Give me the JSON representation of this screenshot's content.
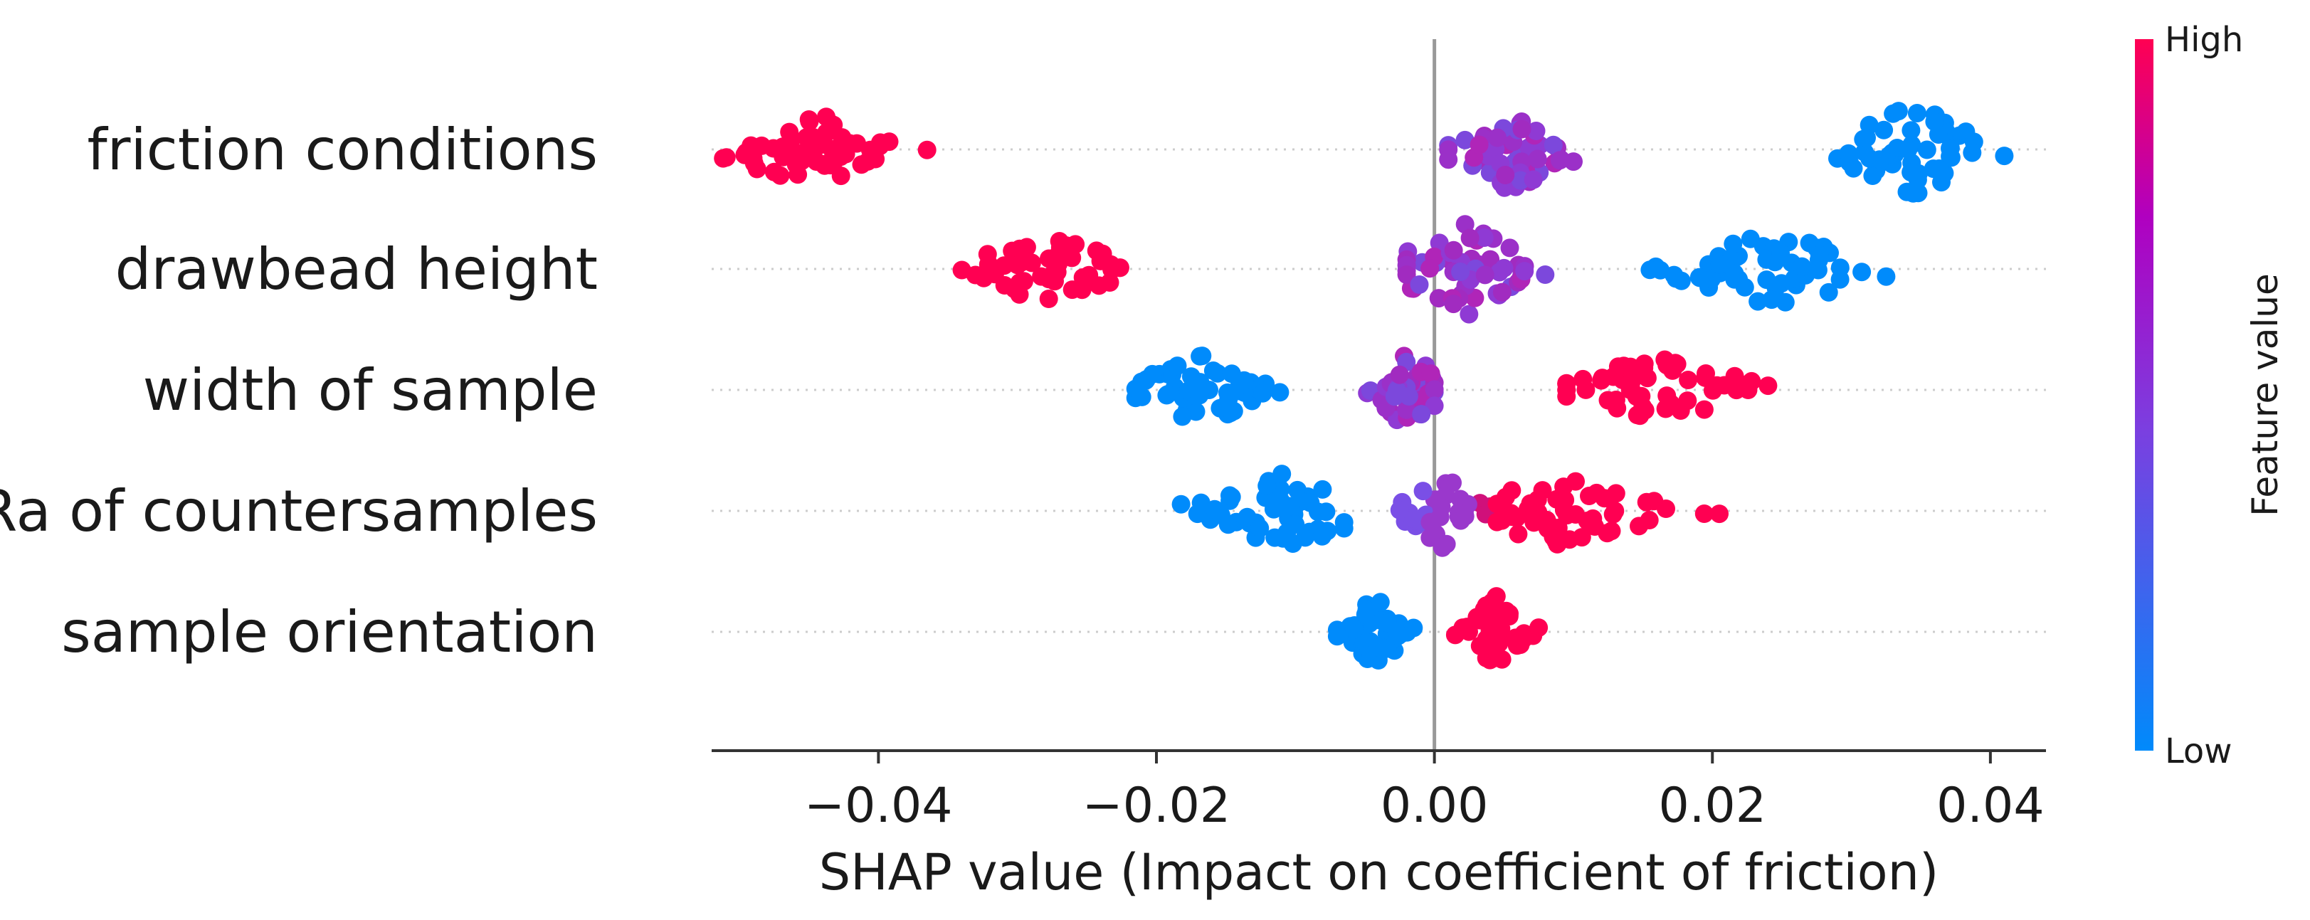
{
  "chart_data": {
    "type": "scatter",
    "subtype": "shap-beeswarm-summary",
    "xlabel": "SHAP value (Impact on coefficient of friction)",
    "xlim": [
      -0.052,
      0.044
    ],
    "xticks": [
      -0.04,
      -0.02,
      0.0,
      0.02,
      0.04
    ],
    "xtick_labels": [
      "−0.04",
      "−0.02",
      "0.00",
      "0.02",
      "0.04"
    ],
    "features": [
      {
        "name": "friction conditions",
        "clusters": [
          {
            "value": "high",
            "min": -0.0515,
            "max": -0.0365,
            "center": -0.0445,
            "spread": 0.0035,
            "count": 55,
            "height": 0.32
          },
          {
            "value": "mid",
            "min": 0.001,
            "max": 0.0115,
            "center": 0.0055,
            "spread": 0.0025,
            "count": 50,
            "height": 0.38
          },
          {
            "value": "low",
            "min": 0.029,
            "max": 0.041,
            "center": 0.0345,
            "spread": 0.003,
            "count": 55,
            "height": 0.38
          }
        ]
      },
      {
        "name": "drawbead height",
        "clusters": [
          {
            "value": "high",
            "min": -0.034,
            "max": -0.0195,
            "center": -0.0275,
            "spread": 0.003,
            "count": 55,
            "height": 0.32
          },
          {
            "value": "mid",
            "min": -0.002,
            "max": 0.0085,
            "center": 0.002,
            "spread": 0.0025,
            "count": 55,
            "height": 0.42
          },
          {
            "value": "low",
            "min": 0.0155,
            "max": 0.0325,
            "center": 0.0245,
            "spread": 0.004,
            "count": 55,
            "height": 0.32
          }
        ]
      },
      {
        "name": "width of sample",
        "clusters": [
          {
            "value": "low",
            "min": -0.0215,
            "max": -0.011,
            "center": -0.017,
            "spread": 0.0025,
            "count": 50,
            "height": 0.32
          },
          {
            "value": "mid",
            "min": -0.0065,
            "max": 0.0,
            "center": -0.002,
            "spread": 0.0015,
            "count": 45,
            "height": 0.32
          },
          {
            "value": "high",
            "min": 0.0095,
            "max": 0.024,
            "center": 0.0165,
            "spread": 0.0035,
            "count": 55,
            "height": 0.32
          }
        ]
      },
      {
        "name": "Ra of countersamples",
        "clusters": [
          {
            "value": "low",
            "min": -0.02,
            "max": -0.0065,
            "center": -0.011,
            "spread": 0.0035,
            "count": 50,
            "height": 0.32
          },
          {
            "value": "mid",
            "min": -0.0025,
            "max": 0.004,
            "center": 0.0005,
            "spread": 0.0017,
            "count": 35,
            "height": 0.32
          },
          {
            "value": "high",
            "min": 0.0045,
            "max": 0.0205,
            "center": 0.0095,
            "spread": 0.0035,
            "count": 55,
            "height": 0.32
          }
        ]
      },
      {
        "name": "sample orientation",
        "clusters": [
          {
            "value": "low",
            "min": -0.007,
            "max": -0.0015,
            "center": -0.0042,
            "spread": 0.0012,
            "count": 40,
            "height": 0.3
          },
          {
            "value": "high",
            "min": 0.0015,
            "max": 0.0075,
            "center": 0.0045,
            "spread": 0.0012,
            "count": 40,
            "height": 0.3
          }
        ]
      }
    ],
    "colorbar": {
      "title": "Feature value",
      "high_label": "High",
      "low_label": "Low",
      "colormap": [
        "#008afb",
        "#7b3fe0",
        "#b000c0",
        "#ff0052"
      ]
    },
    "colors": {
      "high": "#ff0052",
      "mid": "#9b30c8",
      "low": "#008bfb",
      "zero_line": "#999999",
      "axis": "#333333",
      "row_guide": "#cccccc"
    }
  }
}
